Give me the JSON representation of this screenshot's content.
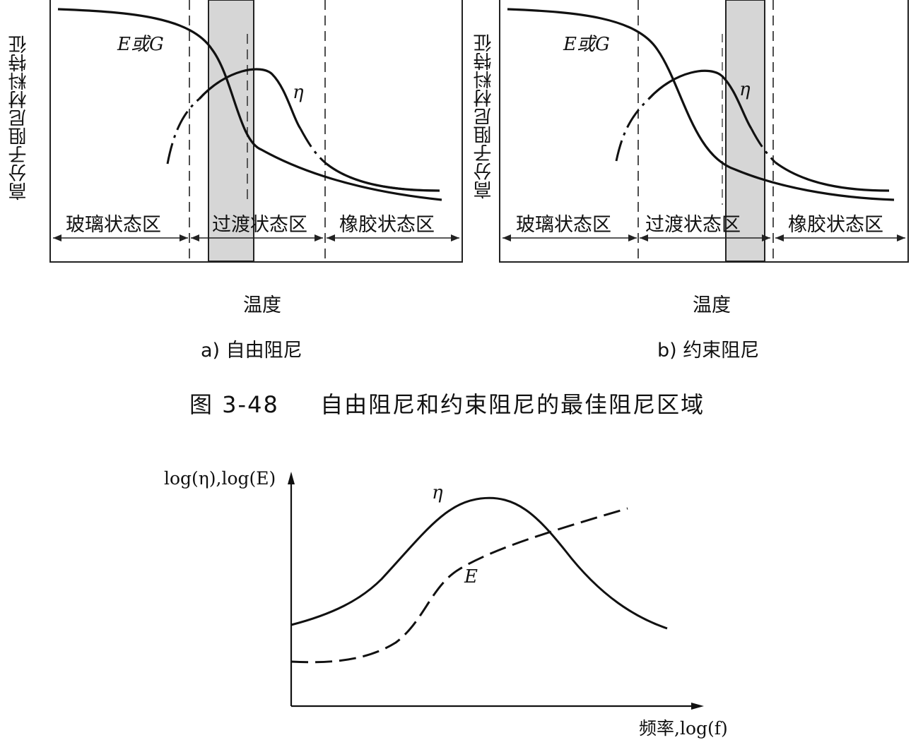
{
  "figure_top": {
    "caption_number": "图 3-48",
    "caption_text": "自由阻尼和约束阻尼的最佳阻尼区域",
    "ylabel": "高分子阻尼材料特征",
    "xlabel": "温度",
    "curve_e": "E或G",
    "curve_eta": "η",
    "zones": [
      "玻璃状态区",
      "过渡状态区",
      "橡胶状态区"
    ],
    "panel_a_label": "a) 自由阻尼",
    "panel_b_label": "b) 约束阻尼"
  },
  "figure_bottom": {
    "ylabel": "log(η),log(E)",
    "xlabel": "频率,log(f)",
    "curve_eta": "η",
    "curve_e": "E"
  },
  "colors": {
    "shade": "#d6d6d6",
    "line": "#111111"
  }
}
